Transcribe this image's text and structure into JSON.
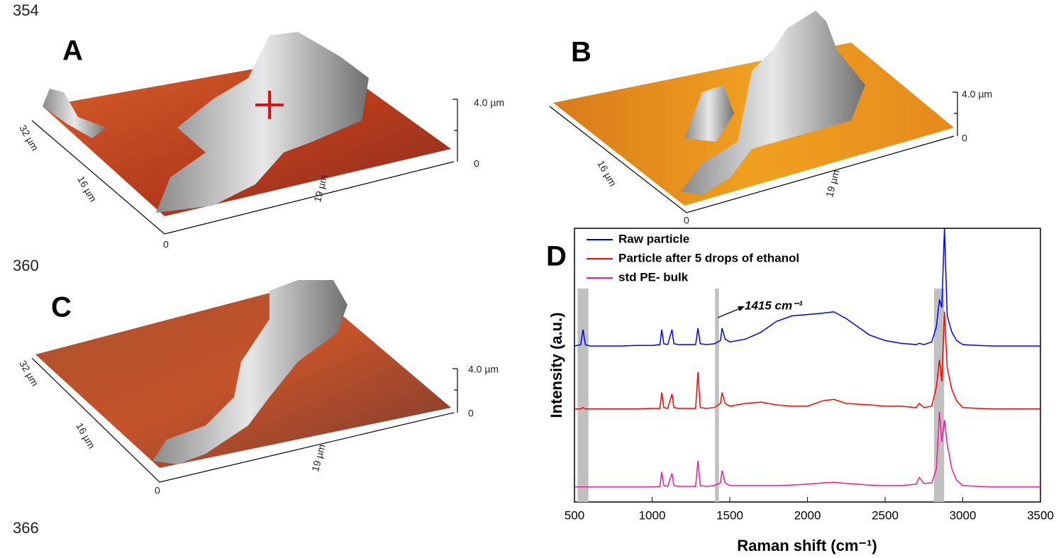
{
  "line_numbers": [
    "354",
    "360",
    "366"
  ],
  "afm_panels": [
    {
      "label": "A",
      "z_top": "4.0 µm",
      "z_bottom": "0",
      "side_label": "32 µm",
      "mid_label": "16 µm",
      "front_label": "19 µm",
      "origin": "0"
    },
    {
      "label": "B",
      "z_top": "4.0 µm",
      "z_bottom": "0",
      "side_label": "16 µm",
      "mid_label": "19 µm",
      "origin": "0"
    },
    {
      "label": "C",
      "z_top": "4.0 µm",
      "z_bottom": "0",
      "side_label": "32 µm",
      "mid_label": "16 µm",
      "front_label": "19 µm",
      "origin": "0"
    }
  ],
  "chart_data": {
    "type": "line",
    "panel_label": "D",
    "x_label": "Raman shift (cm⁻¹)",
    "y_label": "Intensity (a.u.)",
    "annotation": "1415 cm⁻¹",
    "xlim": [
      500,
      3500
    ],
    "xticks": [
      500,
      1000,
      1500,
      2000,
      2500,
      3000,
      3500
    ],
    "ylim": [
      0,
      10
    ],
    "highlight_bands": [
      [
        520,
        590
      ],
      [
        1405,
        1430
      ],
      [
        2815,
        2880
      ]
    ],
    "band_color": "#c0c0c0",
    "legend": "upper left",
    "x": [
      500,
      540,
      555,
      570,
      600,
      700,
      800,
      900,
      1000,
      1050,
      1062,
      1075,
      1100,
      1128,
      1140,
      1170,
      1200,
      1280,
      1295,
      1310,
      1350,
      1400,
      1440,
      1450,
      1470,
      1500,
      1600,
      1700,
      1800,
      1900,
      2000,
      2100,
      2170,
      2250,
      2400,
      2500,
      2600,
      2700,
      2720,
      2750,
      2800,
      2830,
      2850,
      2865,
      2882,
      2900,
      2930,
      2960,
      3000,
      3100,
      3200,
      3300,
      3400,
      3500
    ],
    "series": [
      {
        "name": "Raw particle",
        "color": "#0000ff",
        "values": [
          5.7,
          5.75,
          6.3,
          5.75,
          5.7,
          5.7,
          5.7,
          5.72,
          5.72,
          5.75,
          6.3,
          5.78,
          5.75,
          6.3,
          5.78,
          5.75,
          5.75,
          5.75,
          6.35,
          5.78,
          5.75,
          5.78,
          5.9,
          6.35,
          5.95,
          5.85,
          5.95,
          6.2,
          6.6,
          6.8,
          6.85,
          6.9,
          6.95,
          6.7,
          6.1,
          5.9,
          5.8,
          5.75,
          5.8,
          5.75,
          5.85,
          6.4,
          7.4,
          7.1,
          10.0,
          6.8,
          6.2,
          5.9,
          5.75,
          5.72,
          5.7,
          5.7,
          5.7,
          5.7
        ]
      },
      {
        "name": "Particle after 5 drops of ethanol",
        "color": "#ff0000",
        "values": [
          3.4,
          3.4,
          3.45,
          3.4,
          3.4,
          3.4,
          3.4,
          3.4,
          3.42,
          3.42,
          4.0,
          3.45,
          3.42,
          3.95,
          3.45,
          3.42,
          3.42,
          3.42,
          4.75,
          3.45,
          3.42,
          3.45,
          3.6,
          4.0,
          3.6,
          3.5,
          3.6,
          3.65,
          3.55,
          3.5,
          3.5,
          3.7,
          3.75,
          3.6,
          3.55,
          3.5,
          3.5,
          3.45,
          3.6,
          3.45,
          3.5,
          4.2,
          5.2,
          4.4,
          6.95,
          4.9,
          4.1,
          3.7,
          3.45,
          3.42,
          3.4,
          3.4,
          3.4,
          3.4
        ]
      },
      {
        "name": "std PE- bulk",
        "color": "#ee1b9a",
        "values": [
          0.55,
          0.55,
          0.55,
          0.55,
          0.55,
          0.55,
          0.55,
          0.55,
          0.55,
          0.57,
          1.1,
          0.6,
          0.57,
          1.05,
          0.6,
          0.57,
          0.57,
          0.57,
          1.5,
          0.6,
          0.57,
          0.6,
          0.7,
          1.15,
          0.7,
          0.6,
          0.6,
          0.6,
          0.6,
          0.62,
          0.65,
          0.7,
          0.72,
          0.68,
          0.62,
          0.6,
          0.6,
          0.65,
          0.9,
          0.68,
          0.7,
          1.2,
          3.3,
          2.2,
          3.0,
          2.1,
          1.2,
          0.8,
          0.6,
          0.57,
          0.55,
          0.55,
          0.55,
          0.55
        ]
      }
    ]
  }
}
